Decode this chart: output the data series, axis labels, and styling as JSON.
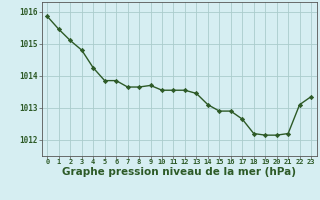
{
  "x": [
    0,
    1,
    2,
    3,
    4,
    5,
    6,
    7,
    8,
    9,
    10,
    11,
    12,
    13,
    14,
    15,
    16,
    17,
    18,
    19,
    20,
    21,
    22,
    23
  ],
  "y": [
    1015.85,
    1015.45,
    1015.1,
    1014.8,
    1014.25,
    1013.85,
    1013.85,
    1013.65,
    1013.65,
    1013.7,
    1013.55,
    1013.55,
    1013.55,
    1013.45,
    1013.1,
    1012.9,
    1012.9,
    1012.65,
    1012.2,
    1012.15,
    1012.15,
    1012.2,
    1013.1,
    1013.35
  ],
  "line_color": "#2d5a27",
  "marker": "D",
  "marker_size": 2.2,
  "bg_color": "#d6eef2",
  "grid_color": "#aacccc",
  "xlabel": "Graphe pression niveau de la mer (hPa)",
  "xlabel_fontsize": 7.5,
  "ylabel_ticks": [
    1012,
    1013,
    1014,
    1015,
    1016
  ],
  "ylim": [
    1011.5,
    1016.3
  ],
  "xlim": [
    -0.5,
    23.5
  ],
  "tick_color": "#2d5a27",
  "spine_color": "#555555"
}
